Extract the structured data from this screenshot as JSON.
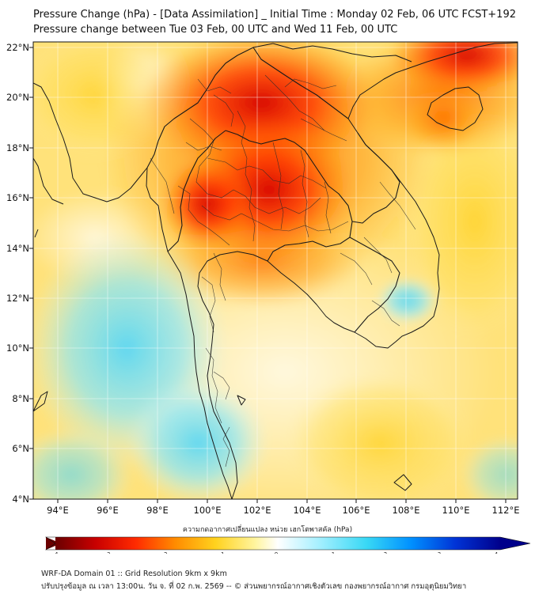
{
  "header": {
    "title_line1": "Pressure Change (hPa) - [Data Assimilation] _ Initial Time : Monday 02 Feb, 06 UTC FCST+192",
    "title_line2": "Pressure change between Tue 03 Feb, 00 UTC and Wed 11 Feb, 00 UTC"
  },
  "map": {
    "lat_ticks": [
      "22°N",
      "20°N",
      "18°N",
      "16°N",
      "14°N",
      "12°N",
      "10°N",
      "8°N",
      "6°N",
      "4°N"
    ],
    "lon_ticks": [
      "94°E",
      "96°E",
      "98°E",
      "100°E",
      "102°E",
      "104°E",
      "106°E",
      "108°E",
      "110°E",
      "112°E"
    ],
    "lon_range": [
      93.0,
      112.5
    ],
    "lat_range": [
      4.0,
      22.2
    ],
    "highlights": [
      {
        "name": "strong-fall-north-thailand-laos",
        "lon": 102.3,
        "lat": 18.2,
        "value": -3.0
      },
      {
        "name": "strong-fall-northeast-thailand",
        "lon": 102.8,
        "lat": 16.2,
        "value": -3.2
      },
      {
        "name": "strong-fall-northwest-thailand",
        "lon": 99.8,
        "lat": 15.6,
        "value": -3.0
      },
      {
        "name": "strong-fall-north-vietnam",
        "lon": 110.5,
        "lat": 21.8,
        "value": -3.2
      },
      {
        "name": "rise-andaman-sea",
        "lon": 95.8,
        "lat": 9.5,
        "value": 1.5
      },
      {
        "name": "rise-gulf-of-thailand-west",
        "lon": 98.2,
        "lat": 6.0,
        "value": 1.4
      },
      {
        "name": "rise-south-vietnam-sea",
        "lon": 108.2,
        "lat": 12.0,
        "value": 1.0
      }
    ]
  },
  "colorbar": {
    "title": "ความกดอากาศเปลี่ยนแปลง หน่วย เฮกโตพาสคัล (hPa)",
    "tick_labels": [
      "-4",
      "-3",
      "-2",
      "-1",
      "0",
      "1",
      "2",
      "3",
      "4"
    ],
    "min": -4,
    "max": 4,
    "stops": [
      "#6b0000",
      "#c80000",
      "#ff2a00",
      "#ff8c00",
      "#ffd21e",
      "#fff5a0",
      "#ffffff",
      "#a8f0ff",
      "#38d8f5",
      "#0090ff",
      "#0033d6",
      "#00008b"
    ]
  },
  "footer": {
    "line1": "WRF-DA Domain 01 :: Grid Resolution 9km x 9km",
    "line2": "ปรับปรุงข้อมูล ณ เวลา 13:00น. วัน จ. ที่ 02 ก.พ. 2569 -- © ส่วนพยากรณ์อากาศเชิงตัวเลข กองพยากรณ์อากาศ กรมอุตุนิยมวิทยา"
  }
}
